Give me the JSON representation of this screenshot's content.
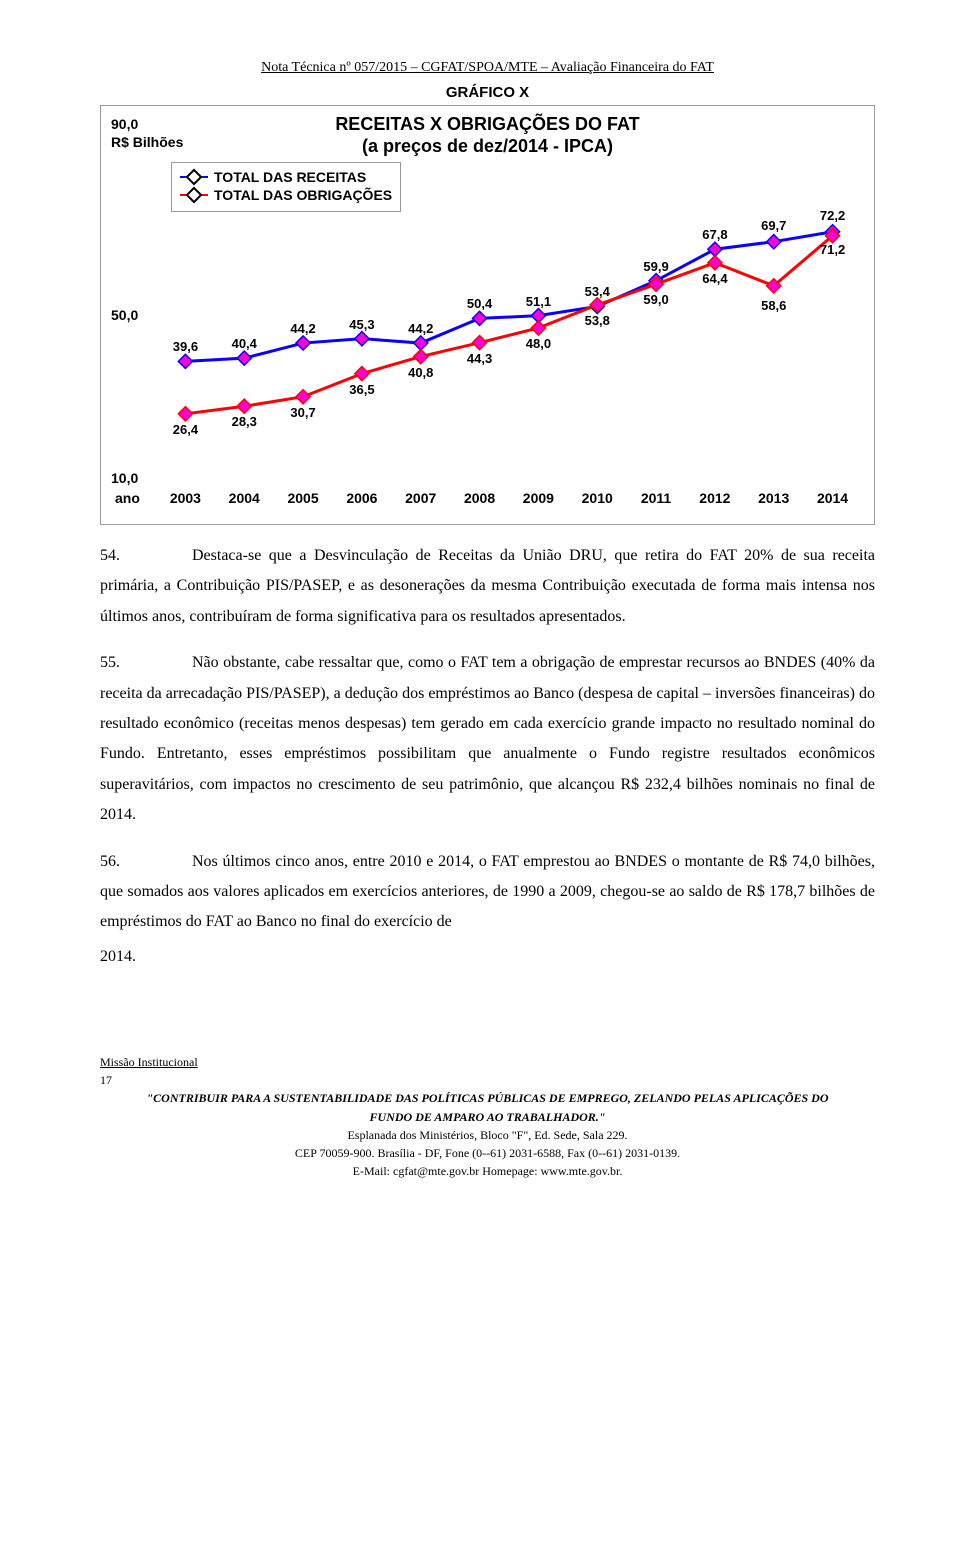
{
  "header": {
    "doc_title": "Nota Técnica nº 057/2015 – CGFAT/SPOA/MTE – Avaliação Financeira do FAT",
    "grafico_label": "GRÁFICO X"
  },
  "chart": {
    "type": "line",
    "title": "RECEITAS X OBRIGAÇÕES DO FAT",
    "subtitle": "(a preços de dez/2014 - IPCA)",
    "y_unit_top": "90,0",
    "y_unit_label": "R$ Bilhões",
    "y_mid": "50,0",
    "y_bottom": "10,0",
    "x_label": "ano",
    "categories": [
      "2003",
      "2004",
      "2005",
      "2006",
      "2007",
      "2008",
      "2009",
      "2010",
      "2011",
      "2012",
      "2013",
      "2014"
    ],
    "series": [
      {
        "name": "TOTAL DAS RECEITAS",
        "color": "#0a00ff",
        "marker_fill": "#ff00d4",
        "values": [
          "39,6",
          "40,4",
          "44,2",
          "45,3",
          "44,2",
          "50,4",
          "51,1",
          "53,4",
          "59,9",
          "67,8",
          "69,7",
          "72,2"
        ],
        "num": [
          39.6,
          40.4,
          44.2,
          45.3,
          44.2,
          50.4,
          51.1,
          53.4,
          59.9,
          67.8,
          69.7,
          72.2
        ]
      },
      {
        "name": "TOTAL DAS OBRIGAÇÕES",
        "color": "#ff0000",
        "marker_fill": "#ff00d4",
        "values": [
          "26,4",
          "28,3",
          "30,7",
          "36,5",
          "40,8",
          "44,3",
          "48,0",
          "53,8",
          "59,0",
          "64,4",
          "58,6",
          "71,2"
        ],
        "num": [
          26.4,
          28.3,
          30.7,
          36.5,
          40.8,
          44.3,
          48.0,
          53.8,
          59.0,
          64.4,
          58.6,
          71.2
        ]
      }
    ],
    "ylim": [
      10,
      90
    ],
    "stroke_width": 3,
    "marker_radius": 5,
    "background_color": "#ffffff",
    "border_color": "#9a9a9a",
    "label_fontsize": 13,
    "axis_fontsize": 14
  },
  "paragraphs": {
    "p54_num": "54.",
    "p54_text": "Destaca-se que a Desvinculação de Receitas da União DRU, que retira do FAT 20% de sua receita primária, a Contribuição PIS/PASEP, e as desonerações da mesma Contribuição executada de forma mais intensa nos últimos anos, contribuíram de forma significativa para os resultados apresentados.",
    "p55_num": "55.",
    "p55_text": "Não obstante, cabe ressaltar que, como o FAT tem a obrigação de emprestar recursos ao BNDES (40% da receita da arrecadação PIS/PASEP), a dedução dos empréstimos ao Banco (despesa de capital – inversões financeiras) do resultado econômico (receitas menos despesas) tem gerado em cada exercício grande impacto no resultado nominal do Fundo. Entretanto, esses empréstimos possibilitam que anualmente o Fundo registre resultados econômicos superavitários, com impactos no crescimento de seu patrimônio, que alcançou R$ 232,4 bilhões nominais no final de 2014.",
    "p56_num": "56.",
    "p56_text_a": "Nos últimos cinco anos, entre 2010 e 2014, o FAT emprestou ao BNDES o montante de R$ 74,0 bilhões, que somados aos valores aplicados em exercícios anteriores, de 1990 a 2009, chegou-se ao saldo de R$ 178,7 bilhões de empréstimos do FAT ao Banco no final do exercício de",
    "p56_text_b": "2014."
  },
  "footer": {
    "missao": "Missão Institucional",
    "page_number": "17",
    "line1": "\"CONTRIBUIR PARA A SUSTENTABILIDADE DAS POLÍTICAS PÚBLICAS DE EMPREGO, ZELANDO PELAS APLICAÇÕES DO",
    "line2": "FUNDO DE AMPARO AO TRABALHADOR.\"",
    "addr1": "Esplanada dos Ministérios, Bloco \"F\", Ed. Sede, Sala 229.",
    "addr2": "CEP 70059-900. Brasília - DF, Fone (0--61) 2031-6588, Fax (0--61) 2031-0139.",
    "addr3": "E-Mail: cgfat@mte.gov.br     Homepage: www.mte.gov.br."
  }
}
